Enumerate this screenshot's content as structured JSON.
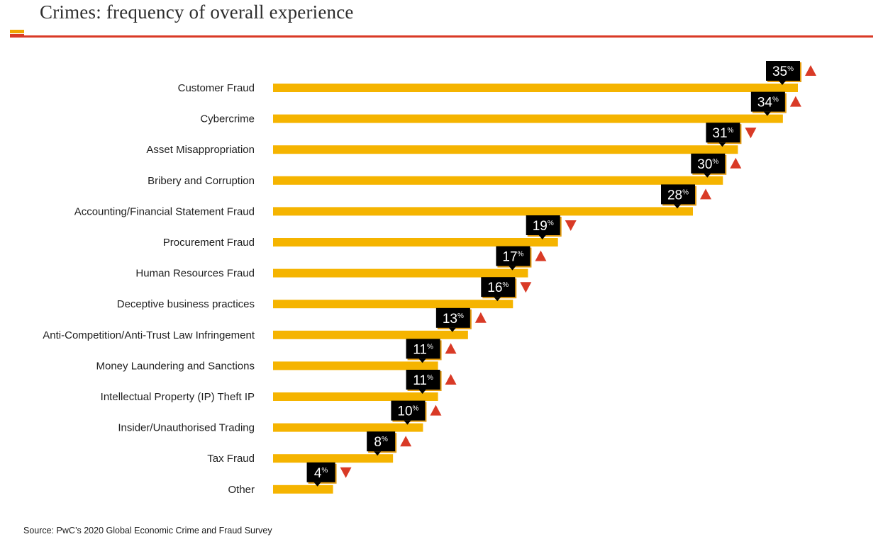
{
  "header": {
    "title": "Crimes: frequency of overall experience"
  },
  "footer": {
    "source": "Source: PwC’s 2020 Global Economic Crime and Fraud Survey"
  },
  "colors": {
    "bar": "#f5b400",
    "bar_accent": "#e39b0f",
    "badge": "#000000",
    "arrow": "#d93a26",
    "rule": "#d93a26",
    "brand_top": "#f0a500",
    "brand_bottom": "#d93a26"
  },
  "chart_data": {
    "type": "bar",
    "orientation": "horizontal",
    "title": "Crimes: frequency of overall experience",
    "value_suffix": "%",
    "categories": [
      "Customer Fraud",
      "Cybercrime",
      "Asset Misappropriation",
      "Bribery and Corruption",
      "Accounting/Financial Statement Fraud",
      "Procurement Fraud",
      "Human Resources Fraud",
      "Deceptive business practices",
      "Anti-Competition/Anti-Trust Law Infringement",
      "Money Laundering and Sanctions",
      "Intellectual Property (IP) Theft IP",
      "Insider/Unauthorised Trading",
      "Tax Fraud",
      "Other"
    ],
    "values": [
      35,
      34,
      31,
      30,
      28,
      19,
      17,
      16,
      13,
      11,
      11,
      10,
      8,
      4
    ],
    "trend": [
      "up",
      "up",
      "down",
      "up",
      "up",
      "down",
      "up",
      "down",
      "up",
      "up",
      "up",
      "up",
      "up",
      "down"
    ],
    "xlim": [
      0,
      35
    ],
    "grid": false,
    "legend": "none"
  }
}
